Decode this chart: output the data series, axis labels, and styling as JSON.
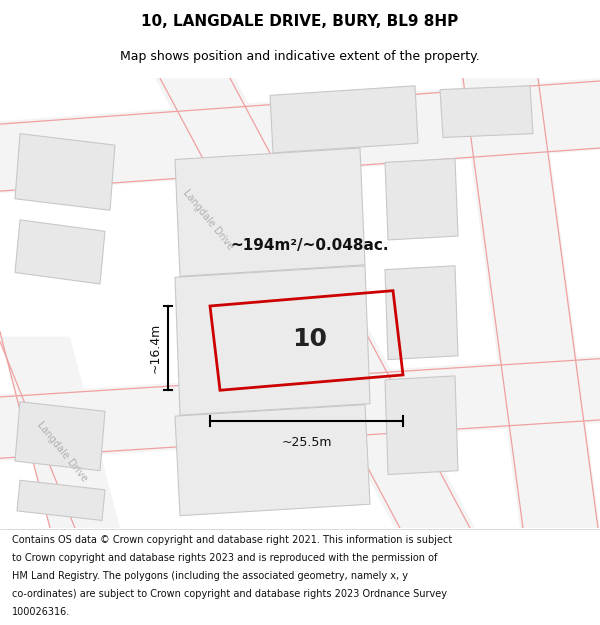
{
  "title": "10, LANGDALE DRIVE, BURY, BL9 8HP",
  "subtitle": "Map shows position and indicative extent of the property.",
  "area_label": "~194m²/~0.048ac.",
  "property_number": "10",
  "width_label": "~25.5m",
  "height_label": "~16.4m",
  "map_bg": "#ffffff",
  "title_bg": "#ffffff",
  "footer_bg": "#ffffff",
  "building_color": "#e8e8e8",
  "building_outline": "#c8c8c8",
  "road_fill": "#f4f4f4",
  "road_line_color": "#f0a0a0",
  "property_color": "#cc0000",
  "dim_line_color": "#111111",
  "street_label_color": "#b0b0b0",
  "title_fontsize": 11,
  "subtitle_fontsize": 9,
  "footer_fontsize": 7.0,
  "footer_lines": [
    "Contains OS data © Crown copyright and database right 2021. This information is subject",
    "to Crown copyright and database rights 2023 and is reproduced with the permission of",
    "HM Land Registry. The polygons (including the associated geometry, namely x, y",
    "co-ordinates) are subject to Crown copyright and database rights 2023 Ordnance Survey",
    "100026316."
  ]
}
